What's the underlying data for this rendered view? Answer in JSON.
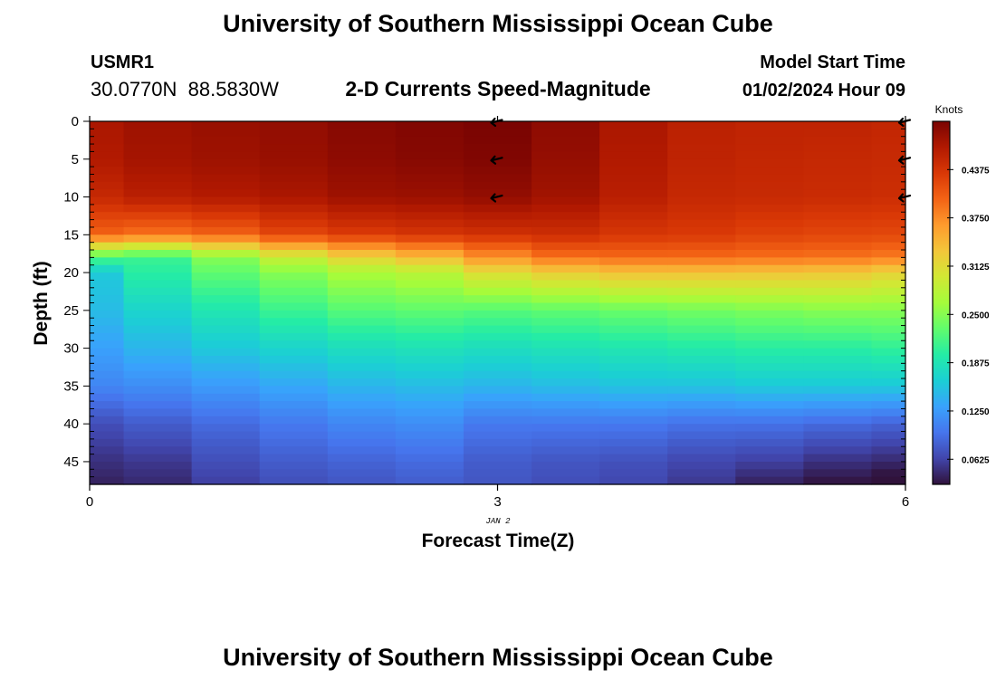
{
  "header": {
    "title": "University of Southern Mississippi Ocean Cube",
    "station_id": "USMR1",
    "coords": "30.0770N  88.5830W",
    "subtitle": "2-D Currents Speed-Magnitude",
    "model_start_label": "Model Start Time",
    "model_start_value": "01/02/2024 Hour 09"
  },
  "footer": {
    "title": "University of Southern Mississippi Ocean Cube"
  },
  "chart_data": {
    "type": "heatmap",
    "title": "2-D Currents Speed-Magnitude",
    "xlabel": "Forecast Time(Z)",
    "ylabel": "Depth (ft)",
    "date_label": "JAN 2",
    "xlim": [
      0,
      6
    ],
    "ylim": [
      48,
      0
    ],
    "x_ticks": [
      0,
      3,
      6
    ],
    "y_ticks": [
      0,
      5,
      10,
      15,
      20,
      25,
      30,
      35,
      40,
      45
    ],
    "x": [
      0,
      0.5,
      1,
      1.5,
      2,
      2.5,
      3,
      3.5,
      4,
      4.5,
      5,
      5.5,
      6
    ],
    "depth_levels": [
      0,
      5,
      10,
      15,
      18,
      20,
      25,
      30,
      35,
      40,
      45,
      48
    ],
    "speed_knots": [
      [
        0.47,
        0.478,
        0.482,
        0.485,
        0.492,
        0.496,
        0.5,
        0.488,
        0.47,
        0.458,
        0.455,
        0.455,
        0.452
      ],
      [
        0.466,
        0.474,
        0.478,
        0.482,
        0.488,
        0.492,
        0.496,
        0.484,
        0.466,
        0.455,
        0.452,
        0.45,
        0.448
      ],
      [
        0.45,
        0.46,
        0.465,
        0.47,
        0.478,
        0.48,
        0.485,
        0.476,
        0.46,
        0.45,
        0.448,
        0.446,
        0.444
      ],
      [
        0.4,
        0.39,
        0.4,
        0.42,
        0.43,
        0.436,
        0.44,
        0.444,
        0.435,
        0.432,
        0.425,
        0.422,
        0.42
      ],
      [
        0.22,
        0.21,
        0.25,
        0.29,
        0.32,
        0.34,
        0.37,
        0.39,
        0.395,
        0.395,
        0.392,
        0.39,
        0.385
      ],
      [
        0.16,
        0.2,
        0.23,
        0.25,
        0.27,
        0.28,
        0.31,
        0.325,
        0.335,
        0.335,
        0.333,
        0.33,
        0.32
      ],
      [
        0.15,
        0.17,
        0.19,
        0.21,
        0.225,
        0.23,
        0.225,
        0.23,
        0.235,
        0.24,
        0.245,
        0.25,
        0.25
      ],
      [
        0.13,
        0.145,
        0.16,
        0.17,
        0.18,
        0.185,
        0.18,
        0.185,
        0.19,
        0.195,
        0.2,
        0.2,
        0.205
      ],
      [
        0.11,
        0.115,
        0.125,
        0.135,
        0.145,
        0.15,
        0.145,
        0.15,
        0.155,
        0.155,
        0.16,
        0.16,
        0.16
      ],
      [
        0.07,
        0.08,
        0.09,
        0.1,
        0.11,
        0.115,
        0.1,
        0.1,
        0.1,
        0.095,
        0.095,
        0.09,
        0.085
      ],
      [
        0.05,
        0.055,
        0.07,
        0.08,
        0.085,
        0.09,
        0.08,
        0.075,
        0.072,
        0.065,
        0.06,
        0.05,
        0.045
      ],
      [
        0.04,
        0.045,
        0.06,
        0.07,
        0.075,
        0.08,
        0.075,
        0.07,
        0.065,
        0.055,
        0.04,
        0.03,
        0.02
      ]
    ],
    "arrows": [
      {
        "time": 3,
        "depth": 0
      },
      {
        "time": 3,
        "depth": 5
      },
      {
        "time": 3,
        "depth": 10
      },
      {
        "time": 6,
        "depth": 0
      },
      {
        "time": 6,
        "depth": 5
      },
      {
        "time": 6,
        "depth": 10
      }
    ],
    "colorbar": {
      "label": "Knots",
      "min": 0.03,
      "max": 0.5,
      "ticks": [
        0.4375,
        0.375,
        0.3125,
        0.25,
        0.1875,
        0.125,
        0.0625
      ],
      "tick_labels": [
        "0.4375",
        "0.3750",
        "0.3125",
        "0.2500",
        "0.1875",
        "0.1250",
        "0.0625"
      ]
    },
    "colormap": [
      "#30123b",
      "#4145ab",
      "#4675ed",
      "#39a2fc",
      "#1bcfd4",
      "#24eca6",
      "#61fc6c",
      "#a4fc3b",
      "#d1e834",
      "#f3c63a",
      "#fe9b2d",
      "#f36315",
      "#d93806",
      "#b11901",
      "#7a0402"
    ]
  }
}
